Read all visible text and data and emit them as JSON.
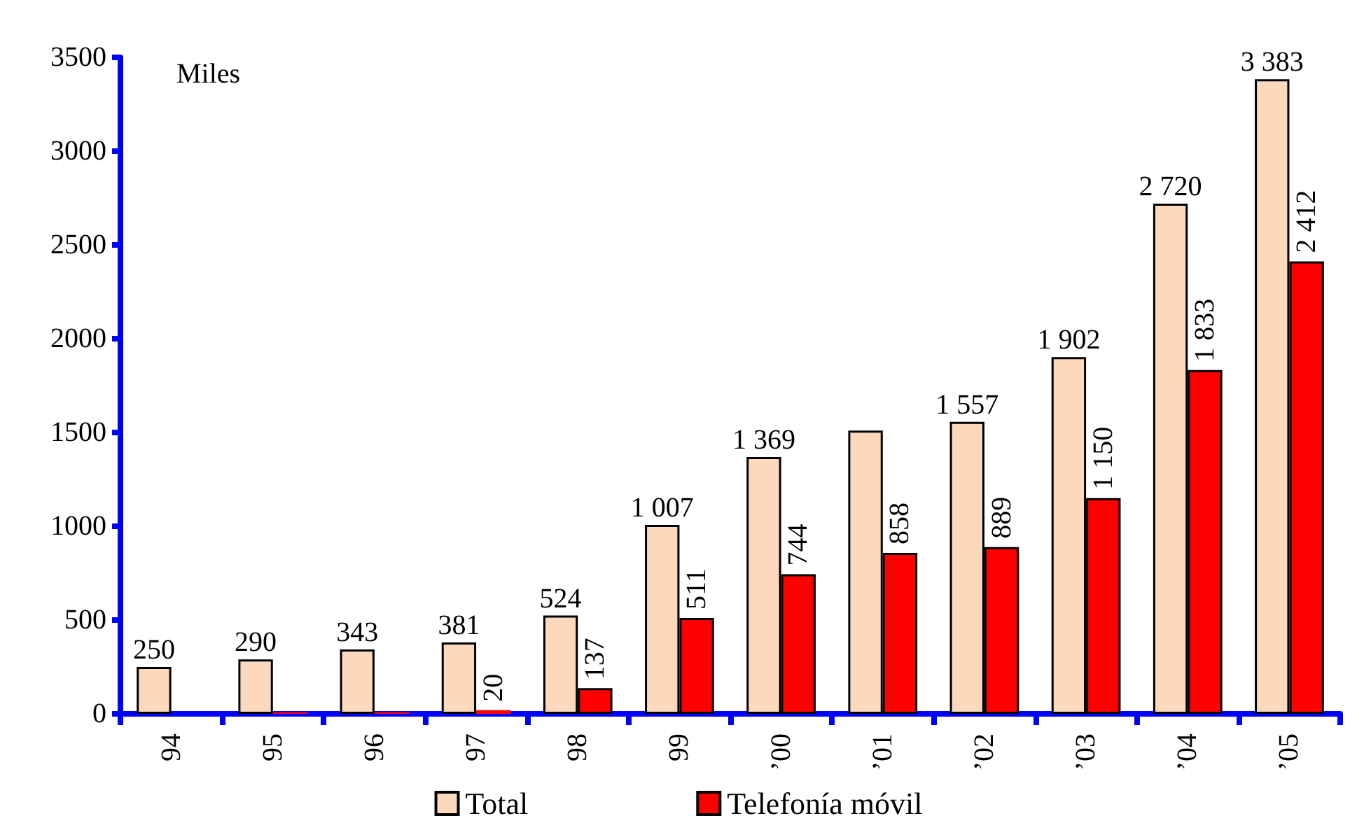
{
  "chart_data": {
    "type": "bar",
    "ylabel": "Miles",
    "categories": [
      "94",
      "95",
      "96",
      "97",
      "98",
      "99",
      "’00",
      "’01",
      "’02",
      "’03",
      "’04",
      "’05"
    ],
    "series": [
      {
        "name": "Total",
        "color": "#fcd9bd",
        "values": [
          250,
          290,
          343,
          381,
          524,
          1007,
          1369,
          1510,
          1557,
          1902,
          2720,
          3383
        ],
        "value_labels": [
          "250",
          "290",
          "343",
          "381",
          "524",
          "1 007",
          "1 369",
          null,
          "1 557",
          "1 902",
          "2 720",
          "3 383"
        ]
      },
      {
        "name": "Telefonía móvil",
        "color": "#ff0000",
        "values": [
          null,
          8,
          8,
          20,
          137,
          511,
          744,
          858,
          889,
          1150,
          1833,
          2412
        ],
        "value_labels": [
          null,
          null,
          null,
          "20",
          "137",
          "511",
          "744",
          "858",
          "889",
          "1 150",
          "1 833",
          "2 412"
        ]
      }
    ],
    "ylim": [
      0,
      3500
    ],
    "yticks": [
      0,
      500,
      1000,
      1500,
      2000,
      2500,
      3000,
      3500
    ],
    "grid": false,
    "legend": "bottom"
  }
}
